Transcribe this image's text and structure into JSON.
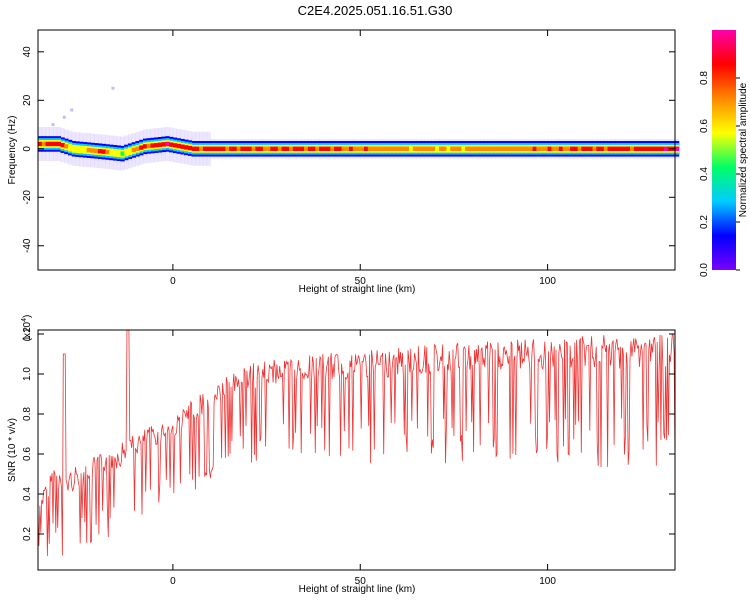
{
  "figure_title": "C2E4.2025.051.16.51.G30",
  "colors": {
    "snr_line": "#ee3333",
    "background": "#ffffff",
    "colormap": [
      "#ffffff",
      "#7a00ff",
      "#0000ff",
      "#00ccff",
      "#00ff66",
      "#ffff00",
      "#ff8800",
      "#ff0000",
      "#ff00aa"
    ]
  },
  "chart_data": [
    {
      "type": "heatmap",
      "title": "",
      "xlabel": "Height of straight line (km)",
      "ylabel": "Frequency (Hz)",
      "xlim": [
        -36,
        134
      ],
      "ylim": [
        -50,
        49
      ],
      "xticks": [
        0,
        50,
        100
      ],
      "yticks": [
        -40,
        -20,
        0,
        20,
        40
      ],
      "grid": false,
      "colorbar": {
        "label": "Normalized spectral amplitude",
        "range": [
          0,
          1
        ],
        "ticks": [
          "0.0",
          "0.2",
          "0.4",
          "0.6",
          "0.8"
        ]
      },
      "ridge": {
        "description_points": [
          {
            "x": -36,
            "f": 2,
            "amp": 0.9
          },
          {
            "x": -31,
            "f": 2,
            "amp": 0.95
          },
          {
            "x": -27,
            "f": 0,
            "amp": 0.6
          },
          {
            "x": -20,
            "f": -1,
            "amp": 0.85
          },
          {
            "x": -14,
            "f": -2,
            "amp": 0.5
          },
          {
            "x": -8,
            "f": 1,
            "amp": 0.9
          },
          {
            "x": -2,
            "f": 2,
            "amp": 0.95
          },
          {
            "x": 5,
            "f": 0,
            "amp": 0.9
          },
          {
            "x": 20,
            "f": 0,
            "amp": 0.85
          },
          {
            "x": 40,
            "f": 0,
            "amp": 0.85
          },
          {
            "x": 60,
            "f": 0,
            "amp": 0.75
          },
          {
            "x": 70,
            "f": 0,
            "amp": 0.7
          },
          {
            "x": 100,
            "f": 0,
            "amp": 0.8
          },
          {
            "x": 134,
            "f": 0,
            "amp": 0.95
          }
        ]
      },
      "scatter_spots": [
        {
          "x": -32,
          "f": 10
        },
        {
          "x": -29,
          "f": 13
        },
        {
          "x": -27,
          "f": 16
        },
        {
          "x": -16,
          "f": 25
        }
      ]
    },
    {
      "type": "line",
      "title": "",
      "xlabel": "Height of straight line (km)",
      "ylabel": "SNR (10 * v/v)",
      "y_multiplier": "(x10^4)",
      "xlim": [
        -36,
        134
      ],
      "ylim": [
        0.02,
        1.22
      ],
      "xticks": [
        0,
        50,
        100
      ],
      "yticks": [
        0.2,
        0.4,
        0.6,
        0.8,
        1.0,
        1.2
      ],
      "grid": false,
      "series": [
        {
          "envelope": [
            {
              "x": -36,
              "low": 0.12,
              "high": 0.35
            },
            {
              "x": -32,
              "low": 0.06,
              "high": 0.55
            },
            {
              "x": -29,
              "low": 0.05,
              "high": 0.5
            },
            {
              "x": -25,
              "low": 0.08,
              "high": 0.55
            },
            {
              "x": -20,
              "low": 0.2,
              "high": 0.6
            },
            {
              "x": -15,
              "low": 0.15,
              "high": 0.65
            },
            {
              "x": -10,
              "low": 0.25,
              "high": 0.7
            },
            {
              "x": -5,
              "low": 0.3,
              "high": 0.75
            },
            {
              "x": 0,
              "low": 0.38,
              "high": 0.78
            },
            {
              "x": 10,
              "low": 0.45,
              "high": 0.95
            },
            {
              "x": 20,
              "low": 0.55,
              "high": 1.05
            },
            {
              "x": 30,
              "low": 0.6,
              "high": 1.08
            },
            {
              "x": 40,
              "low": 0.55,
              "high": 1.1
            },
            {
              "x": 50,
              "low": 0.55,
              "high": 1.12
            },
            {
              "x": 60,
              "low": 0.55,
              "high": 1.13
            },
            {
              "x": 70,
              "low": 0.55,
              "high": 1.15
            },
            {
              "x": 80,
              "low": 0.55,
              "high": 1.16
            },
            {
              "x": 90,
              "low": 0.55,
              "high": 1.17
            },
            {
              "x": 100,
              "low": 0.55,
              "high": 1.18
            },
            {
              "x": 110,
              "low": 0.55,
              "high": 1.19
            },
            {
              "x": 120,
              "low": 0.5,
              "high": 1.2
            },
            {
              "x": 134,
              "low": 0.5,
              "high": 1.2
            }
          ],
          "peaks": [
            {
              "x": -29,
              "y": 1.1
            },
            {
              "x": -12,
              "y": 1.22
            }
          ]
        }
      ]
    }
  ]
}
